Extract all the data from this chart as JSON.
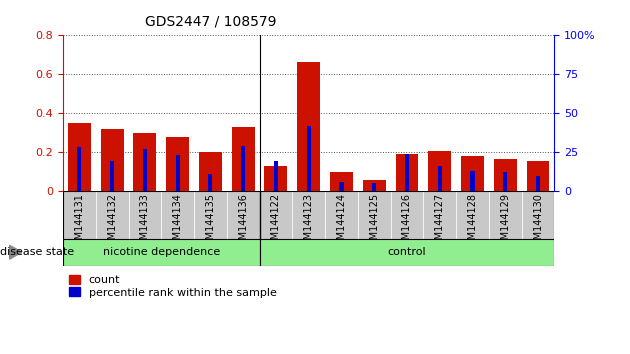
{
  "title": "GDS2447 / 108579",
  "samples": [
    "GSM144131",
    "GSM144132",
    "GSM144133",
    "GSM144134",
    "GSM144135",
    "GSM144136",
    "GSM144122",
    "GSM144123",
    "GSM144124",
    "GSM144125",
    "GSM144126",
    "GSM144127",
    "GSM144128",
    "GSM144129",
    "GSM144130"
  ],
  "count_values": [
    0.35,
    0.32,
    0.3,
    0.28,
    0.2,
    0.33,
    0.13,
    0.665,
    0.1,
    0.055,
    0.19,
    0.205,
    0.18,
    0.165,
    0.155
  ],
  "percentile_values": [
    0.225,
    0.155,
    0.215,
    0.185,
    0.09,
    0.23,
    0.155,
    0.335,
    0.045,
    0.04,
    0.19,
    0.13,
    0.105,
    0.1,
    0.08
  ],
  "group_separator": 6,
  "nd_label": "nicotine dependence",
  "ctrl_label": "control",
  "group_color": "#90EE90",
  "group_border_color": "#006600",
  "left_ylim": [
    0,
    0.8
  ],
  "right_ylim": [
    0,
    100
  ],
  "left_yticks": [
    0,
    0.2,
    0.4,
    0.6,
    0.8
  ],
  "right_yticks": [
    0,
    25,
    50,
    75,
    100
  ],
  "left_yticklabels": [
    "0",
    "0.2",
    "0.4",
    "0.6",
    "0.8"
  ],
  "right_yticklabels": [
    "0",
    "25",
    "50",
    "75",
    "100%"
  ],
  "count_color": "#CC1100",
  "percentile_color": "#0000CC",
  "bar_bg_color": "#C8C8C8",
  "disease_state_label": "disease state",
  "ylabel_right_color": "blue",
  "grid_color": "#555555"
}
